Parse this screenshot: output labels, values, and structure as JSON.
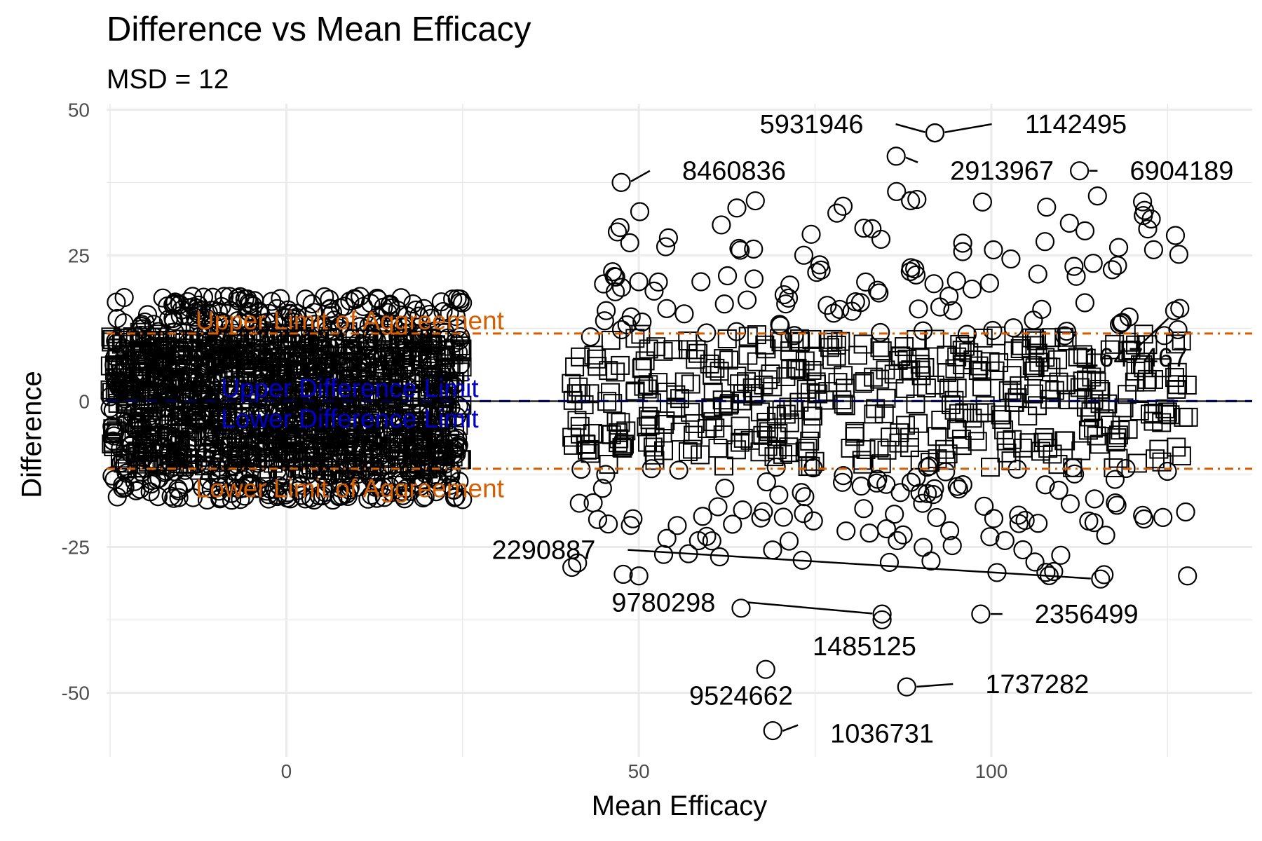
{
  "chart_data": {
    "type": "scatter",
    "title": "Difference vs Mean Efficacy",
    "subtitle": "MSD = 12",
    "xlabel": "Mean Efficacy",
    "ylabel": "Difference",
    "xlim": [
      -25.5,
      137
    ],
    "ylim": [
      -61,
      51
    ],
    "x_ticks": [
      0,
      50,
      100
    ],
    "y_ticks": [
      50,
      25,
      0,
      -25,
      -50
    ],
    "grid": true,
    "reference_lines": [
      {
        "name": "Upper Limit of Aggreement",
        "value": 11.6,
        "color": "#d55e00",
        "style": "dotdash"
      },
      {
        "name": "Lower Limit of Aggreement",
        "value": -11.6,
        "color": "#d55e00",
        "style": "dotdash"
      },
      {
        "name": "Upper Difference Limit",
        "value": 0,
        "color": "#0000cc",
        "style": "dashed"
      },
      {
        "name": "Lower Difference Limit",
        "value": 0,
        "color": "#0000cc",
        "style": "dashed"
      },
      {
        "name": "zero",
        "value": 0,
        "color": "#000000",
        "style": "solid"
      }
    ],
    "labeled_points": [
      {
        "label": "1142495",
        "x": 92,
        "y": 46,
        "lx": 112,
        "ly": 47.5
      },
      {
        "label": "5931946",
        "x": 92,
        "y": 46,
        "lx": 74.5,
        "ly": 47.5
      },
      {
        "label": "2913967",
        "x": 86.5,
        "y": 42,
        "lx": 101.5,
        "ly": 39.5
      },
      {
        "label": "6904189",
        "x": 112.5,
        "y": 39.5,
        "lx": 127,
        "ly": 39.5
      },
      {
        "label": "8460836",
        "x": 47.5,
        "y": 37.5,
        "lx": 63.5,
        "ly": 39.5
      },
      {
        "label": "1647467",
        "x": 126,
        "y": 15.5,
        "lx": 120.5,
        "ly": 7.5
      },
      {
        "label": "2290887",
        "x": 115.5,
        "y": -30.5,
        "lx": 36.5,
        "ly": -25.5
      },
      {
        "label": "9780298",
        "x": 84.5,
        "y": -36.5,
        "lx": 53.5,
        "ly": -34.5
      },
      {
        "label": "1485125",
        "x": 84.5,
        "y": -37.5,
        "lx": 82,
        "ly": -42
      },
      {
        "label": "2356499",
        "x": 98.5,
        "y": -36.5,
        "lx": 113.5,
        "ly": -36.5
      },
      {
        "label": "1737282",
        "x": 88,
        "y": -49,
        "lx": 106.5,
        "ly": -48.5
      },
      {
        "label": "9524662",
        "x": 68,
        "y": -46,
        "lx": 64.5,
        "ly": -50.5
      },
      {
        "label": "1036731",
        "x": 69,
        "y": -56.5,
        "lx": 84.5,
        "ly": -57
      },
      {
        "label": "",
        "x": 64.5,
        "y": -35.5,
        "lx": 64.5,
        "ly": -35.5
      },
      {
        "label": "",
        "x": 40.5,
        "y": -28.5,
        "lx": 40.5,
        "ly": -28.5
      }
    ],
    "point_groups": [
      {
        "shape": "circle",
        "count": 900,
        "x": [
          -25,
          25
        ],
        "y": [
          -17,
          18
        ],
        "spread": "uniform-dense"
      },
      {
        "shape": "square",
        "count": 900,
        "x": [
          -25,
          25
        ],
        "y": [
          -12,
          12
        ],
        "spread": "uniform-dense"
      },
      {
        "shape": "square",
        "count": 420,
        "x": [
          40,
          128
        ],
        "y": [
          -11.5,
          11.5
        ],
        "spread": "uniform"
      },
      {
        "shape": "circle",
        "count": 230,
        "x": [
          40,
          128
        ],
        "y": [
          -30,
          36
        ],
        "spread": "outside-band"
      }
    ]
  }
}
